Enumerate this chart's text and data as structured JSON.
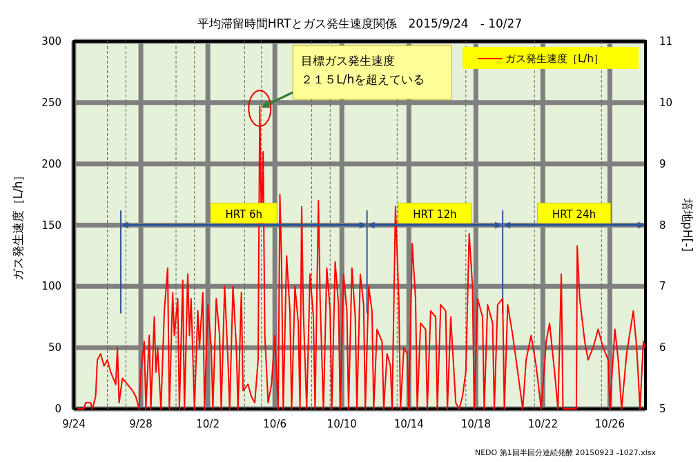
{
  "chart_data": {
    "type": "line",
    "title": "平均滞留時間HRTとガス発生速度関係　2015/9/24　- 10/27",
    "ylabel": "ガス発生速度［L/h］",
    "y2label": "培地pH[-]",
    "xlim": [
      "2015-09-24",
      "2015-10-28T03:00"
    ],
    "xticks": [
      {
        "value": "2015-09-24",
        "label": "9/24"
      },
      {
        "value": "2015-09-28",
        "label": "9/28"
      },
      {
        "value": "2015-10-02",
        "label": "10/2"
      },
      {
        "value": "2015-10-06",
        "label": "10/6"
      },
      {
        "value": "2015-10-10",
        "label": "10/10"
      },
      {
        "value": "2015-10-14",
        "label": "10/14"
      },
      {
        "value": "2015-10-18",
        "label": "10/18"
      },
      {
        "value": "2015-10-22",
        "label": "10/22"
      },
      {
        "value": "2015-10-26",
        "label": "10/26"
      }
    ],
    "ylim": [
      0,
      300
    ],
    "yticks": [
      0,
      50,
      100,
      150,
      200,
      250,
      300
    ],
    "y2lim": [
      5,
      11
    ],
    "y2ticks": [
      5,
      6,
      7,
      8,
      9,
      10,
      11
    ],
    "grid": true,
    "legend": "top right",
    "marker": "none",
    "line_style": "solid",
    "series": [
      {
        "name": "ガス発生速度［L/h］",
        "color": "#ff0000",
        "x": [
          "2015-09-24T04:48",
          "2015-09-24T14:24",
          "2015-09-24T16:48",
          "2015-09-25T00:00",
          "2015-09-25T02:24",
          "2015-09-25T07:12",
          "2015-09-25T09:36",
          "2015-09-25T14:24",
          "2015-09-25T19:12",
          "2015-09-26T00:00",
          "2015-09-26T04:48",
          "2015-09-26T12:00",
          "2015-09-26T14:24",
          "2015-09-26T16:48",
          "2015-09-26T21:36",
          "2015-09-27T04:48",
          "2015-09-27T12:00",
          "2015-09-27T16:48",
          "2015-09-27T21:36",
          "2015-09-28T00:00",
          "2015-09-28T04:48",
          "2015-09-28T07:12",
          "2015-09-28T12:00",
          "2015-09-28T14:24",
          "2015-09-28T19:12",
          "2015-09-28T21:36",
          "2015-09-29T00:00",
          "2015-09-29T04:48",
          "2015-09-29T09:36",
          "2015-09-29T14:24",
          "2015-09-29T16:48",
          "2015-09-29T21:36",
          "2015-09-30T00:00",
          "2015-09-30T04:48",
          "2015-09-30T07:12",
          "2015-09-30T12:00",
          "2015-09-30T14:24",
          "2015-09-30T19:12",
          "2015-09-30T21:36",
          "2015-10-01T00:00",
          "2015-10-01T04:48",
          "2015-10-01T09:36",
          "2015-10-01T12:00",
          "2015-10-01T16:48",
          "2015-10-01T19:12",
          "2015-10-02T00:00",
          "2015-10-02T04:48",
          "2015-10-02T07:12",
          "2015-10-02T12:00",
          "2015-10-02T16:48",
          "2015-10-02T19:12",
          "2015-10-03T00:00",
          "2015-10-03T04:48",
          "2015-10-03T07:12",
          "2015-10-03T12:00",
          "2015-10-03T16:48",
          "2015-10-03T19:12",
          "2015-10-04T00:00",
          "2015-10-04T02:24",
          "2015-10-04T09:36",
          "2015-10-04T14:24",
          "2015-10-04T19:12",
          "2015-10-05T00:00",
          "2015-10-05T02:24",
          "2015-10-05T04:48",
          "2015-10-05T07:12",
          "2015-10-05T09:36",
          "2015-10-05T14:24",
          "2015-10-05T19:12",
          "2015-10-06T00:00",
          "2015-10-06T04:48",
          "2015-10-06T07:12",
          "2015-10-06T09:36",
          "2015-10-06T12:00",
          "2015-10-06T16:48",
          "2015-10-06T21:36",
          "2015-10-07T00:00",
          "2015-10-07T04:48",
          "2015-10-07T09:36",
          "2015-10-07T12:00",
          "2015-10-07T14:24",
          "2015-10-07T16:48",
          "2015-10-07T21:36",
          "2015-10-08T02:24",
          "2015-10-08T07:12",
          "2015-10-08T09:36",
          "2015-10-08T14:24",
          "2015-10-08T16:48",
          "2015-10-08T21:36",
          "2015-10-09T02:24",
          "2015-10-09T07:12",
          "2015-10-09T09:36",
          "2015-10-09T14:24",
          "2015-10-09T19:12",
          "2015-10-09T21:36",
          "2015-10-10T02:24",
          "2015-10-10T07:12",
          "2015-10-10T09:36",
          "2015-10-10T14:24",
          "2015-10-10T19:12",
          "2015-10-10T21:36",
          "2015-10-11T02:24",
          "2015-10-11T07:12",
          "2015-10-11T09:36",
          "2015-10-11T14:24",
          "2015-10-11T19:12",
          "2015-10-11T21:36",
          "2015-10-12T02:24",
          "2015-10-12T09:36",
          "2015-10-12T12:00",
          "2015-10-12T16:48",
          "2015-10-12T21:36",
          "2015-10-13T00:00",
          "2015-10-13T04:48",
          "2015-10-13T09:36",
          "2015-10-13T12:00",
          "2015-10-13T16:48",
          "2015-10-13T21:36",
          "2015-10-14T00:00",
          "2015-10-14T04:48",
          "2015-10-14T09:36",
          "2015-10-14T12:00",
          "2015-10-14T16:48",
          "2015-10-15T00:00",
          "2015-10-15T02:24",
          "2015-10-15T07:12",
          "2015-10-15T14:24",
          "2015-10-15T16:48",
          "2015-10-15T21:36",
          "2015-10-16T04:48",
          "2015-10-16T07:12",
          "2015-10-16T12:00",
          "2015-10-16T19:12",
          "2015-10-17T00:00",
          "2015-10-17T04:48",
          "2015-10-17T09:36",
          "2015-10-17T14:24",
          "2015-10-17T19:12",
          "2015-10-17T21:36",
          "2015-10-18T02:24",
          "2015-10-18T09:36",
          "2015-10-18T12:00",
          "2015-10-18T16:48",
          "2015-10-19T00:00",
          "2015-10-19T02:24",
          "2015-10-19T07:12",
          "2015-10-19T14:24",
          "2015-10-19T16:48",
          "2015-10-19T21:36",
          "2015-10-20T04:48",
          "2015-10-20T12:00",
          "2015-10-20T19:12",
          "2015-10-21T00:00",
          "2015-10-21T07:12",
          "2015-10-21T14:24",
          "2015-10-21T21:36",
          "2015-10-22T04:48",
          "2015-10-22T09:36",
          "2015-10-22T16:48",
          "2015-10-22T21:36",
          "2015-10-23T02:24",
          "2015-10-23T04:48",
          "2015-10-24T00:00",
          "2015-10-24T01:12",
          "2015-10-24T04:48",
          "2015-10-24T12:00",
          "2015-10-24T16:48",
          "2015-10-25T00:00",
          "2015-10-25T07:12",
          "2015-10-25T14:24",
          "2015-10-25T21:36",
          "2015-10-26T00:00",
          "2015-10-26T07:12",
          "2015-10-26T12:00",
          "2015-10-26T16:48",
          "2015-10-27T00:00",
          "2015-10-27T09:36",
          "2015-10-27T14:24",
          "2015-10-27T19:12",
          "2015-10-28T00:00",
          "2015-10-28T02:24"
        ],
        "values": [
          0,
          0,
          5,
          5,
          0,
          10,
          40,
          45,
          35,
          40,
          30,
          20,
          50,
          5,
          25,
          20,
          15,
          10,
          0,
          30,
          55,
          0,
          60,
          0,
          75,
          30,
          50,
          0,
          80,
          115,
          0,
          95,
          60,
          90,
          0,
          105,
          0,
          110,
          60,
          90,
          0,
          80,
          50,
          95,
          0,
          85,
          50,
          0,
          90,
          60,
          0,
          100,
          40,
          0,
          100,
          50,
          0,
          95,
          15,
          20,
          10,
          5,
          40,
          247,
          150,
          210,
          60,
          5,
          20,
          60,
          0,
          175,
          120,
          0,
          125,
          80,
          0,
          100,
          70,
          0,
          165,
          80,
          0,
          110,
          75,
          0,
          170,
          90,
          0,
          115,
          80,
          0,
          120,
          85,
          0,
          110,
          80,
          0,
          115,
          75,
          0,
          110,
          85,
          0,
          100,
          80,
          0,
          65,
          55,
          0,
          45,
          35,
          0,
          165,
          90,
          0,
          50,
          45,
          0,
          135,
          90,
          0,
          70,
          65,
          0,
          80,
          75,
          0,
          85,
          80,
          0,
          75,
          5,
          0,
          10,
          30,
          143,
          100,
          0,
          90,
          75,
          0,
          85,
          70,
          0,
          85,
          90,
          0,
          85,
          60,
          30,
          0,
          40,
          60,
          35,
          0,
          55,
          70,
          30,
          0,
          110,
          0,
          0,
          133,
          90,
          55,
          40,
          50,
          65,
          50,
          40,
          0,
          65,
          40,
          0,
          45,
          80,
          50,
          0,
          55,
          50
        ]
      }
    ],
    "ref_lines": [
      {
        "axis": "x",
        "value": "2015-09-26",
        "color": "#606060",
        "line_style": "dashed"
      },
      {
        "axis": "x",
        "value": "2015-09-27T02:24",
        "color": "#606060",
        "line_style": "dashed"
      },
      {
        "axis": "x",
        "value": "2015-09-30T02:24",
        "color": "#606060",
        "line_style": "dashed"
      },
      {
        "axis": "x",
        "value": "2015-10-01T04:48",
        "color": "#606060",
        "line_style": "dashed"
      },
      {
        "axis": "x",
        "value": "2015-10-04T04:48",
        "color": "#606060",
        "line_style": "dashed"
      },
      {
        "axis": "x",
        "value": "2015-10-05T04:48",
        "color": "#606060",
        "line_style": "dashed"
      },
      {
        "axis": "x",
        "value": "2015-10-08T04:48",
        "color": "#606060",
        "line_style": "dashed"
      },
      {
        "axis": "x",
        "value": "2015-10-09T07:12",
        "color": "#606060",
        "line_style": "dashed"
      },
      {
        "axis": "x",
        "value": "2015-10-13T07:12",
        "color": "#606060",
        "line_style": "dashed"
      },
      {
        "axis": "x",
        "value": "2015-10-17T09:36",
        "color": "#606060",
        "line_style": "dashed"
      },
      {
        "axis": "x",
        "value": "2015-10-21T12:00",
        "color": "#606060",
        "line_style": "dashed"
      },
      {
        "axis": "x",
        "value": "2015-10-25T12:00",
        "color": "#606060",
        "line_style": "dashed"
      },
      {
        "axis": "x",
        "value": "2015-09-26T19:12",
        "color": "#2e5597",
        "line_style": "solid"
      },
      {
        "axis": "x",
        "value": "2015-10-11T12:00",
        "color": "#2e5597",
        "line_style": "solid"
      },
      {
        "axis": "x",
        "value": "2015-10-19T14:24",
        "color": "#2e5597",
        "line_style": "solid"
      }
    ],
    "annotations": [
      "目標ガス発生速度２１５L/hを超えている",
      "HRT 6h",
      "HRT 12h",
      "HRT 24h",
      "NEDO 第1回半回分連続発酵 20150923 -1027.xlsx"
    ]
  }
}
